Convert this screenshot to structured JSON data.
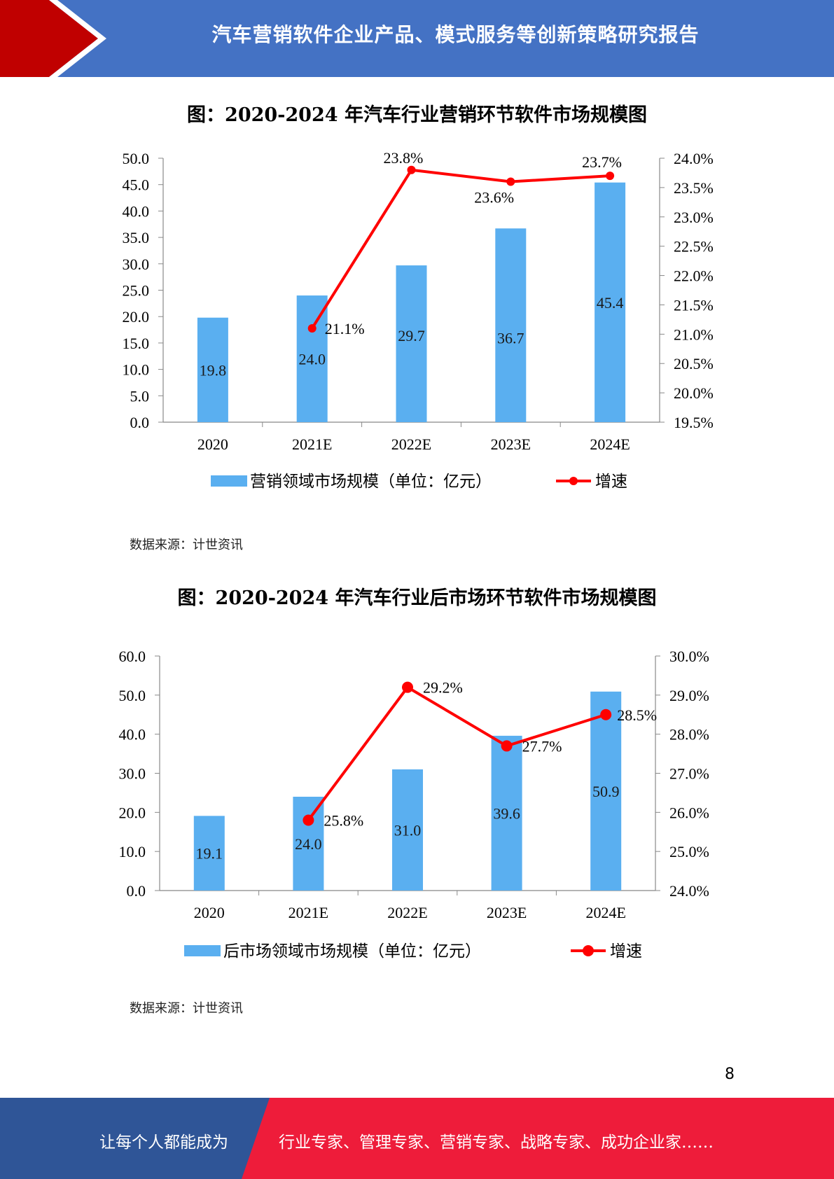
{
  "header": {
    "title": "汽车营销软件企业产品、模式服务等创新策略研究报告"
  },
  "colors": {
    "bar": "#5aaff0",
    "line": "#ff0000",
    "header_blue": "#4472c4",
    "header_red": "#c00000",
    "footer_blue": "#2f5597",
    "footer_red": "#ee1c3a"
  },
  "chart_data": [
    {
      "type": "bar+line",
      "title": "图：2020-2024 年汽车行业营销环节软件市场规模图",
      "categories": [
        "2020",
        "2021E",
        "2022E",
        "2023E",
        "2024E"
      ],
      "series": [
        {
          "name": "营销领域市场规模（单位：亿元）",
          "type": "bar",
          "axis": "left",
          "values": [
            19.8,
            24.0,
            29.7,
            36.7,
            45.4
          ],
          "labels": [
            "19.8",
            "24.0",
            "29.7",
            "36.7",
            "45.4"
          ]
        },
        {
          "name": "增速",
          "type": "line",
          "axis": "right",
          "values": [
            null,
            21.1,
            23.8,
            23.6,
            23.7
          ],
          "labels": [
            "",
            "21.1%",
            "23.8%",
            "23.6%",
            "23.7%"
          ]
        }
      ],
      "y_left": {
        "min": 0,
        "max": 50,
        "step": 5,
        "ticks": [
          "0.0",
          "5.0",
          "10.0",
          "15.0",
          "20.0",
          "25.0",
          "30.0",
          "35.0",
          "40.0",
          "45.0",
          "50.0"
        ]
      },
      "y_right": {
        "min": 19.5,
        "max": 24.0,
        "step": 0.5,
        "ticks": [
          "19.5%",
          "20.0%",
          "20.5%",
          "21.0%",
          "21.5%",
          "22.0%",
          "22.5%",
          "23.0%",
          "23.5%",
          "24.0%"
        ]
      },
      "legend_position": "bottom",
      "source": "数据来源：计世资讯"
    },
    {
      "type": "bar+line",
      "title": "图：2020-2024 年汽车行业后市场环节软件市场规模图",
      "categories": [
        "2020",
        "2021E",
        "2022E",
        "2023E",
        "2024E"
      ],
      "series": [
        {
          "name": "后市场领域市场规模（单位：亿元）",
          "type": "bar",
          "axis": "left",
          "values": [
            19.1,
            24.0,
            31.0,
            39.6,
            50.9
          ],
          "labels": [
            "19.1",
            "24.0",
            "31.0",
            "39.6",
            "50.9"
          ]
        },
        {
          "name": "增速",
          "type": "line",
          "axis": "right",
          "values": [
            null,
            25.8,
            29.2,
            27.7,
            28.5
          ],
          "labels": [
            "",
            "25.8%",
            "29.2%",
            "27.7%",
            "28.5%"
          ]
        }
      ],
      "y_left": {
        "min": 0,
        "max": 60,
        "step": 10,
        "ticks": [
          "0.0",
          "10.0",
          "20.0",
          "30.0",
          "40.0",
          "50.0",
          "60.0"
        ]
      },
      "y_right": {
        "min": 24.0,
        "max": 30.0,
        "step": 1.0,
        "ticks": [
          "24.0%",
          "25.0%",
          "26.0%",
          "27.0%",
          "28.0%",
          "29.0%",
          "30.0%"
        ]
      },
      "legend_position": "bottom",
      "source": "数据来源：计世资讯"
    }
  ],
  "page_number": "8",
  "footer": {
    "left_text": "让每个人都能成为",
    "right_text": "行业专家、管理专家、营销专家、战略专家、成功企业家……"
  }
}
